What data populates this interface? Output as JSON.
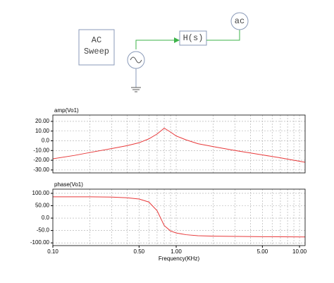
{
  "diagram": {
    "sweep_label": [
      "AC",
      "Sweep"
    ],
    "block_label": "H(s)",
    "probe_label": "ac"
  },
  "chart_data": [
    {
      "type": "line",
      "x": [
        0.1,
        0.15,
        0.2,
        0.3,
        0.4,
        0.5,
        0.6,
        0.7,
        0.8,
        0.9,
        1.0,
        1.2,
        1.5,
        2,
        3,
        5,
        7,
        10,
        11.1
      ],
      "series": [
        {
          "name": "amp(Vo1)",
          "color": "#e8393a",
          "values": [
            -18.5,
            -15,
            -12,
            -8,
            -5,
            -2,
            2,
            7,
            13,
            9,
            5,
            1,
            -3,
            -6,
            -10,
            -14.5,
            -17.5,
            -21,
            -22
          ]
        }
      ],
      "xlim": [
        0.1,
        11.1
      ],
      "log_x": true,
      "ylim": [
        -33,
        26.5
      ],
      "grid": true,
      "yticks": [
        {
          "value": 20,
          "label": "20.00"
        },
        {
          "value": 10,
          "label": "10.00"
        },
        {
          "value": 0,
          "label": "0.0"
        },
        {
          "value": -10,
          "label": "-10.00"
        },
        {
          "value": -20,
          "label": "-20.00"
        },
        {
          "value": -30,
          "label": "-30.00"
        }
      ]
    },
    {
      "type": "line",
      "x": [
        0.1,
        0.2,
        0.3,
        0.4,
        0.5,
        0.6,
        0.7,
        0.8,
        0.9,
        1.0,
        1.2,
        1.5,
        2,
        5,
        11.1
      ],
      "series": [
        {
          "name": "phase(Vo1)",
          "color": "#e8393a",
          "values": [
            86,
            86,
            85,
            82,
            77,
            65,
            30,
            -30,
            -52,
            -60,
            -67,
            -71,
            -73,
            -75,
            -76
          ]
        }
      ],
      "xlim": [
        0.1,
        11.1
      ],
      "log_x": true,
      "ylim": [
        -111,
        117
      ],
      "grid": true,
      "xlabel": "Frequency(KHz)",
      "xticks": [
        {
          "value": 0.1,
          "label": "0.10"
        },
        {
          "value": 0.5,
          "label": "0.50"
        },
        {
          "value": 1,
          "label": "1.00"
        },
        {
          "value": 5,
          "label": "5.00"
        },
        {
          "value": 10,
          "label": "10.00"
        }
      ],
      "yticks": [
        {
          "value": 100,
          "label": "100.00"
        },
        {
          "value": 50,
          "label": "50.00"
        },
        {
          "value": 0,
          "label": "0.0"
        },
        {
          "value": -50,
          "label": "-50.0"
        },
        {
          "value": -100,
          "label": "-100.00"
        }
      ]
    }
  ]
}
